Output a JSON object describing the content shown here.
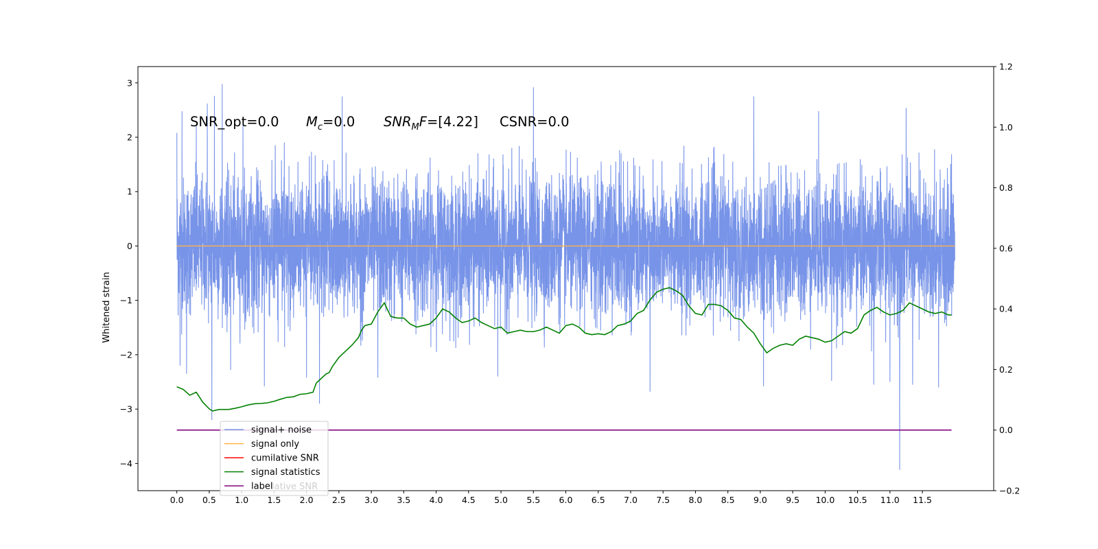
{
  "chart_data": {
    "type": "line",
    "ylabel": "Whitened strain",
    "xlim": [
      -0.6,
      12.6
    ],
    "ylim": [
      -4.5,
      3.3
    ],
    "y2lim": [
      -0.2,
      1.2
    ],
    "xticks": [
      "0.0",
      "0.5",
      "1.0",
      "1.5",
      "2.0",
      "2.5",
      "3.0",
      "3.5",
      "4.0",
      "4.5",
      "5.0",
      "5.5",
      "6.0",
      "6.5",
      "7.0",
      "7.5",
      "8.0",
      "8.5",
      "9.0",
      "9.5",
      "10.0",
      "10.5",
      "11.0",
      "11.5"
    ],
    "yticks": [
      "3",
      "2",
      "1",
      "0",
      "−1",
      "−2",
      "−3",
      "−4"
    ],
    "y2ticks": [
      "1.2",
      "1.0",
      "0.8",
      "0.6",
      "0.4",
      "0.2",
      "0.0",
      "−0.2"
    ],
    "annotation": {
      "snr_opt": "SNR_opt=0.0",
      "mc_symbol": "M",
      "mc_sub": "c",
      "mc_value": "=0.0",
      "snrmf_symbol": "SNR",
      "snrmf_sub": "M",
      "snrmf_symbol2": "F",
      "snrmf_value": "=[4.22]",
      "csnr": "CSNR=0.0"
    },
    "series": [
      {
        "name": "signal+ noise",
        "color": "#7894e8",
        "axis": "left",
        "x_range": [
          0.0,
          12.0
        ],
        "noise_amplitude": 1.5,
        "spikes": [
          {
            "x": 0.0,
            "y": 2.08
          },
          {
            "x": 0.08,
            "y": 2.48
          },
          {
            "x": 0.3,
            "y": 2.2
          },
          {
            "x": 0.47,
            "y": 2.62
          },
          {
            "x": 0.58,
            "y": 2.76
          },
          {
            "x": 0.7,
            "y": 2.98
          },
          {
            "x": 1.02,
            "y": 2.3
          },
          {
            "x": 2.2,
            "y": 2.45
          },
          {
            "x": 2.55,
            "y": 2.75
          },
          {
            "x": 5.5,
            "y": 2.92
          },
          {
            "x": 8.9,
            "y": 2.75
          },
          {
            "x": 9.9,
            "y": 2.48
          },
          {
            "x": 11.25,
            "y": 2.54
          },
          {
            "x": 0.05,
            "y": -2.2
          },
          {
            "x": 0.15,
            "y": -2.35
          },
          {
            "x": 0.54,
            "y": -3.2
          },
          {
            "x": 0.83,
            "y": -2.28
          },
          {
            "x": 1.35,
            "y": -2.58
          },
          {
            "x": 2.0,
            "y": -2.42
          },
          {
            "x": 2.2,
            "y": -2.9
          },
          {
            "x": 3.1,
            "y": -2.42
          },
          {
            "x": 4.95,
            "y": -2.4
          },
          {
            "x": 7.3,
            "y": -2.68
          },
          {
            "x": 9.05,
            "y": -2.58
          },
          {
            "x": 10.1,
            "y": -2.48
          },
          {
            "x": 10.75,
            "y": -2.55
          },
          {
            "x": 11.0,
            "y": -2.5
          },
          {
            "x": 11.15,
            "y": -4.12
          },
          {
            "x": 11.35,
            "y": -2.55
          },
          {
            "x": 11.75,
            "y": -2.6
          }
        ]
      },
      {
        "name": "signal only",
        "color": "#ffb347",
        "axis": "left",
        "x": [
          0.0,
          12.0
        ],
        "values": [
          0.0,
          0.0
        ]
      },
      {
        "name": "cumilative SNR",
        "color": "#ff0000",
        "axis": "left",
        "x": [],
        "values": []
      },
      {
        "name": "signal statistics",
        "color": "#008000",
        "axis": "right",
        "x": [
          0.0,
          0.1,
          0.2,
          0.3,
          0.4,
          0.5,
          0.55,
          0.65,
          0.8,
          0.9,
          1.0,
          1.1,
          1.2,
          1.3,
          1.4,
          1.5,
          1.6,
          1.7,
          1.8,
          1.9,
          2.0,
          2.1,
          2.15,
          2.2,
          2.3,
          2.35,
          2.4,
          2.5,
          2.6,
          2.7,
          2.8,
          2.85,
          2.9,
          3.0,
          3.1,
          3.2,
          3.3,
          3.4,
          3.5,
          3.6,
          3.7,
          3.8,
          3.9,
          4.0,
          4.1,
          4.2,
          4.3,
          4.4,
          4.5,
          4.6,
          4.7,
          4.8,
          4.9,
          5.0,
          5.1,
          5.2,
          5.3,
          5.4,
          5.5,
          5.6,
          5.7,
          5.8,
          5.9,
          6.0,
          6.1,
          6.2,
          6.3,
          6.4,
          6.5,
          6.6,
          6.7,
          6.8,
          6.9,
          7.0,
          7.1,
          7.2,
          7.3,
          7.4,
          7.5,
          7.6,
          7.7,
          7.8,
          7.9,
          8.0,
          8.1,
          8.2,
          8.3,
          8.4,
          8.5,
          8.6,
          8.7,
          8.8,
          8.9,
          9.0,
          9.1,
          9.2,
          9.3,
          9.4,
          9.5,
          9.6,
          9.7,
          9.8,
          9.9,
          10.0,
          10.1,
          10.2,
          10.3,
          10.4,
          10.5,
          10.6,
          10.7,
          10.8,
          10.9,
          11.0,
          11.1,
          11.2,
          11.3,
          11.4,
          11.5,
          11.6,
          11.7,
          11.8,
          11.9,
          11.95
        ],
        "values": [
          0.143,
          0.134,
          0.115,
          0.125,
          0.092,
          0.07,
          0.063,
          0.068,
          0.068,
          0.072,
          0.077,
          0.083,
          0.087,
          0.088,
          0.09,
          0.095,
          0.102,
          0.108,
          0.11,
          0.118,
          0.12,
          0.125,
          0.155,
          0.165,
          0.185,
          0.19,
          0.21,
          0.24,
          0.26,
          0.28,
          0.305,
          0.33,
          0.345,
          0.35,
          0.39,
          0.42,
          0.375,
          0.37,
          0.37,
          0.35,
          0.34,
          0.345,
          0.35,
          0.37,
          0.4,
          0.39,
          0.37,
          0.355,
          0.36,
          0.37,
          0.355,
          0.345,
          0.335,
          0.34,
          0.32,
          0.325,
          0.33,
          0.325,
          0.325,
          0.33,
          0.34,
          0.33,
          0.32,
          0.345,
          0.35,
          0.34,
          0.32,
          0.315,
          0.318,
          0.315,
          0.325,
          0.345,
          0.35,
          0.36,
          0.385,
          0.395,
          0.43,
          0.455,
          0.465,
          0.47,
          0.46,
          0.445,
          0.41,
          0.385,
          0.38,
          0.415,
          0.415,
          0.41,
          0.395,
          0.37,
          0.365,
          0.34,
          0.32,
          0.285,
          0.255,
          0.27,
          0.28,
          0.285,
          0.28,
          0.3,
          0.31,
          0.305,
          0.3,
          0.29,
          0.295,
          0.31,
          0.325,
          0.32,
          0.335,
          0.38,
          0.395,
          0.405,
          0.39,
          0.38,
          0.385,
          0.395,
          0.42,
          0.41,
          0.4,
          0.39,
          0.385,
          0.39,
          0.38,
          0.38
        ],
        "stroke_segments_note": ""
      },
      {
        "name": "label",
        "color": "#800080",
        "axis": "right",
        "x": [
          0.0,
          11.95
        ],
        "values": [
          0.0,
          0.0
        ]
      }
    ],
    "legend": {
      "placement": "lower-left",
      "entries": [
        "signal+ noise",
        "signal only",
        "cumilative SNR",
        "signal statistics",
        "label"
      ],
      "ghost_text": "lative SNR"
    }
  }
}
